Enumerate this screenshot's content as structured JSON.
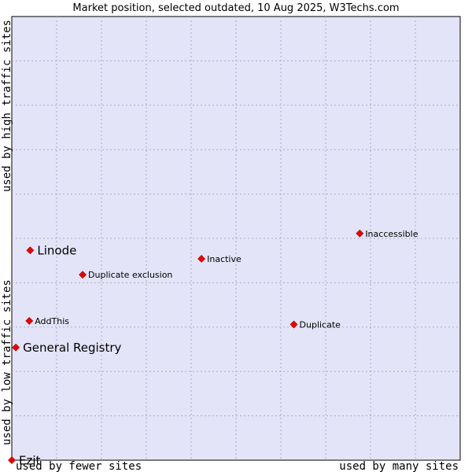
{
  "chart_data": {
    "type": "scatter",
    "title": "Market position, selected outdated, 10 Aug 2025, W3Techs.com",
    "xlabel_low": "used by fewer sites",
    "xlabel_high": "used by many sites",
    "ylabel_low": "used by low traffic sites",
    "ylabel_high": "used by high traffic sites",
    "xlim": [
      0,
      100
    ],
    "ylim": [
      0,
      100
    ],
    "grid": true,
    "grid_divisions": 10,
    "plot_background": "#e4e4f8",
    "point_color": "#ee0000",
    "points": [
      {
        "label": "Inaccessible",
        "x": 77.6,
        "y": 51.1,
        "emphasis": false
      },
      {
        "label": "Linode",
        "x": 4.1,
        "y": 47.3,
        "emphasis": true
      },
      {
        "label": "Inactive",
        "x": 42.3,
        "y": 45.4,
        "emphasis": false
      },
      {
        "label": "Duplicate exclusion",
        "x": 15.8,
        "y": 41.8,
        "emphasis": false
      },
      {
        "label": "AddThis",
        "x": 3.9,
        "y": 31.4,
        "emphasis": false
      },
      {
        "label": "Duplicate",
        "x": 62.9,
        "y": 30.6,
        "emphasis": false
      },
      {
        "label": "General Registry",
        "x": 0.9,
        "y": 25.4,
        "emphasis": true
      },
      {
        "label": "Ezit",
        "x": 0.0,
        "y": 0.0,
        "emphasis": true
      }
    ]
  }
}
